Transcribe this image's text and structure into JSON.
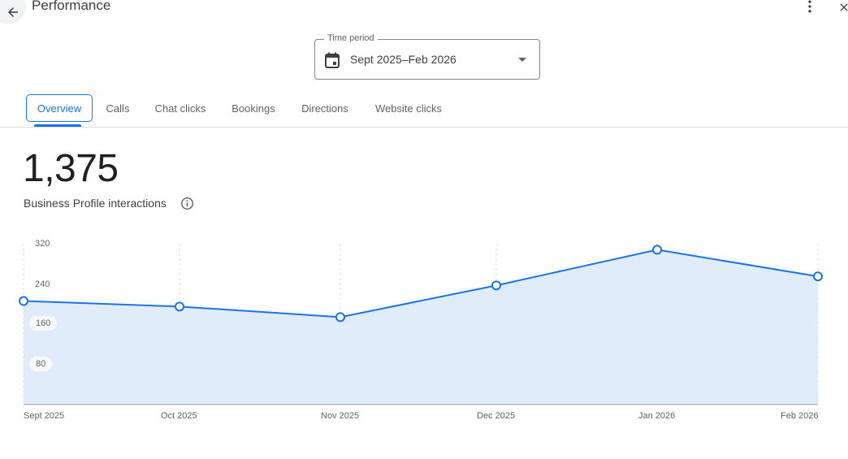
{
  "header": {
    "title": "Performance",
    "back_icon": "arrow-left-icon",
    "more_icon": "more-vertical-icon",
    "close_icon": "close-icon"
  },
  "time_period": {
    "label": "Time period",
    "value": "Sept 2025–Feb 2026",
    "icon": "calendar-icon"
  },
  "tabs": [
    {
      "label": "Overview",
      "active": true
    },
    {
      "label": "Calls",
      "active": false
    },
    {
      "label": "Chat clicks",
      "active": false
    },
    {
      "label": "Bookings",
      "active": false
    },
    {
      "label": "Directions",
      "active": false
    },
    {
      "label": "Website clicks",
      "active": false
    }
  ],
  "summary": {
    "value": "1,375",
    "label": "Business Profile interactions",
    "info_icon": "info-icon"
  },
  "colors": {
    "accent": "#1a73e8",
    "area_fill": "#e1ecfb",
    "grid": "#dadce0"
  },
  "chart_data": {
    "type": "area",
    "title": "",
    "xlabel": "",
    "ylabel": "",
    "categories": [
      "Sept 2025",
      "Oct 2025",
      "Nov 2025",
      "Dec 2025",
      "Jan 2026",
      "Feb 2026"
    ],
    "series": [
      {
        "name": "Business Profile interactions",
        "values": [
          206,
          195,
          174,
          237,
          308,
          255
        ]
      }
    ],
    "yticks": [
      "320",
      "240",
      "160",
      "80"
    ],
    "ylim": [
      0,
      320
    ],
    "grid": "vertical dashed",
    "legend": "none"
  }
}
